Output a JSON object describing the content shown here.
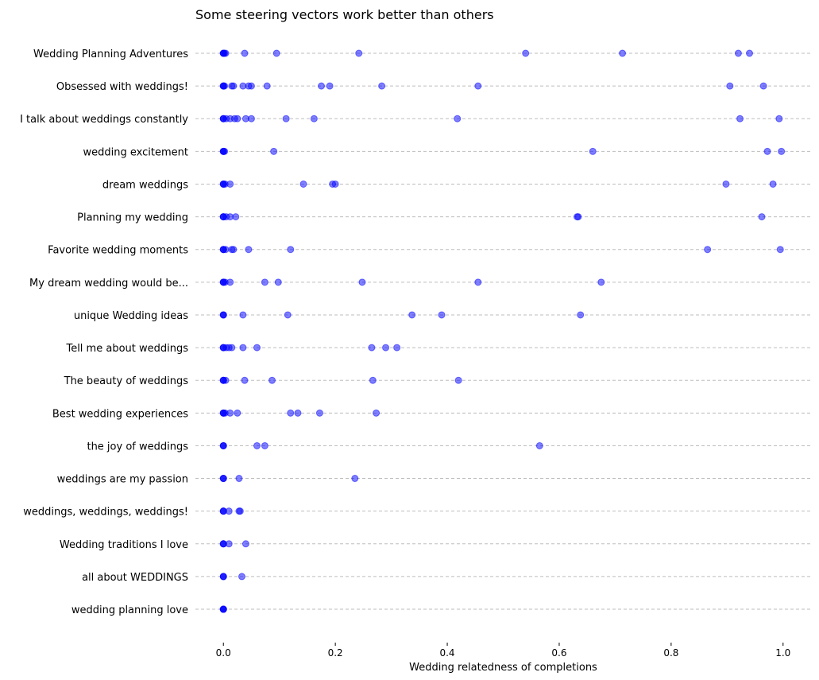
{
  "chart_data": {
    "type": "scatter",
    "title": "Some steering vectors work better than others",
    "xlabel": "Wedding relatedness of completions",
    "ylabel": "",
    "xlim": [
      -0.05,
      1.05
    ],
    "xticks": [
      "0.0",
      "0.2",
      "0.4",
      "0.6",
      "0.8",
      "1.0"
    ],
    "xtick_values": [
      0.0,
      0.2,
      0.4,
      0.6,
      0.8,
      1.0
    ],
    "grid": "horizontal dashed",
    "marker_color": "#0000ff",
    "categories": [
      "Wedding Planning Adventures",
      "Obsessed with weddings!",
      "I talk about weddings constantly",
      "wedding excitement",
      "dream weddings",
      "Planning my wedding",
      "Favorite wedding moments",
      "My dream wedding would be...",
      "unique Wedding ideas",
      "Tell me about weddings",
      "The beauty of weddings",
      "Best wedding experiences",
      "the joy of weddings",
      "weddings are my passion",
      "weddings, weddings, weddings!",
      "Wedding traditions I love",
      "all about WEDDINGS",
      "wedding planning love"
    ],
    "points": [
      [
        0,
        0,
        0,
        0.002,
        0.004,
        0.038,
        0.095,
        0.242,
        0.54,
        0.713,
        0.92,
        0.94
      ],
      [
        0,
        0,
        0,
        0.002,
        0.015,
        0.018,
        0.035,
        0.045,
        0.05,
        0.078,
        0.175,
        0.19,
        0.283,
        0.455,
        0.905,
        0.965
      ],
      [
        0,
        0,
        0,
        0.005,
        0.012,
        0.02,
        0.025,
        0.04,
        0.05,
        0.112,
        0.162,
        0.418,
        0.923,
        0.993
      ],
      [
        0,
        0,
        0,
        0.002,
        0.09,
        0.66,
        0.972,
        0.997
      ],
      [
        0,
        0,
        0,
        0.003,
        0.012,
        0.143,
        0.195,
        0.2,
        0.898,
        0.982
      ],
      [
        0,
        0,
        0,
        0.005,
        0.012,
        0.022,
        0.632,
        0.634,
        0.962
      ],
      [
        0,
        0,
        0,
        0.004,
        0.015,
        0.018,
        0.045,
        0.12,
        0.865,
        0.995
      ],
      [
        0,
        0,
        0,
        0.003,
        0.012,
        0.074,
        0.098,
        0.248,
        0.455,
        0.675
      ],
      [
        0,
        0,
        0,
        0.035,
        0.115,
        0.337,
        0.39,
        0.638
      ],
      [
        0,
        0,
        0,
        0.005,
        0.01,
        0.015,
        0.035,
        0.06,
        0.265,
        0.29,
        0.31
      ],
      [
        0,
        0,
        0,
        0.004,
        0.038,
        0.087,
        0.267,
        0.42
      ],
      [
        0,
        0,
        0,
        0.003,
        0.012,
        0.025,
        0.12,
        0.133,
        0.172,
        0.273
      ],
      [
        0,
        0,
        0,
        0.06,
        0.074,
        0.565
      ],
      [
        0,
        0,
        0,
        0.028,
        0.235
      ],
      [
        0,
        0,
        0,
        0.01,
        0.028,
        0.03
      ],
      [
        0,
        0,
        0,
        0.01,
        0.04
      ],
      [
        0,
        0,
        0,
        0.033
      ],
      [
        0,
        0,
        0,
        0
      ]
    ]
  }
}
